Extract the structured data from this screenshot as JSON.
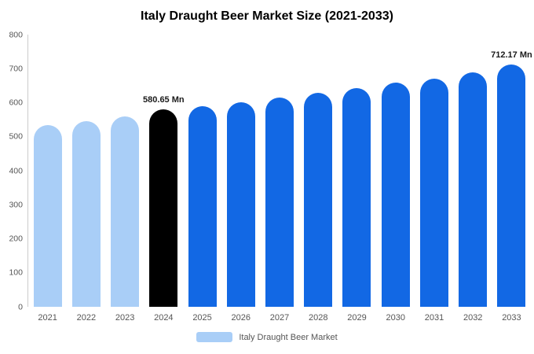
{
  "title": "Italy Draught Beer Market Size (2021-2033)",
  "legend": {
    "label": "Italy Draught Beer Market",
    "swatch_color": "#A9CEF7"
  },
  "chart_data": {
    "type": "bar",
    "title": "Italy Draught Beer Market Size (2021-2033)",
    "categories": [
      "2021",
      "2022",
      "2023",
      "2024",
      "2025",
      "2026",
      "2027",
      "2028",
      "2029",
      "2030",
      "2031",
      "2032",
      "2033"
    ],
    "values": [
      535,
      546,
      560,
      580.65,
      589,
      601,
      614,
      628,
      643,
      658,
      671,
      689,
      712.17
    ],
    "ylim": [
      0,
      800
    ],
    "yticks": [
      0,
      100,
      200,
      300,
      400,
      500,
      600,
      700,
      800
    ],
    "bar_colors": [
      "#A9CEF7",
      "#A9CEF7",
      "#A9CEF7",
      "#000000",
      "#1268E4",
      "#1268E4",
      "#1268E4",
      "#1268E4",
      "#1268E4",
      "#1268E4",
      "#1268E4",
      "#1268E4",
      "#1268E4"
    ],
    "annotations": [
      {
        "category": "2024",
        "text": "580.65 Mn"
      },
      {
        "category": "2033",
        "text": "712.17 Mn"
      }
    ],
    "xlabel": "",
    "ylabel": "",
    "grid": false,
    "legend_position": "bottom",
    "series_name": "Italy Draught Beer Market"
  }
}
